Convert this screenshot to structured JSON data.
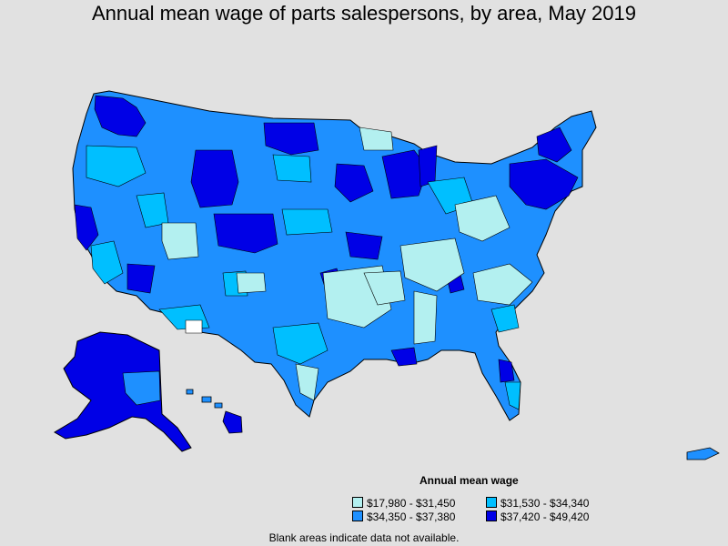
{
  "title": "Annual mean wage of parts salespersons, by area, May 2019",
  "legend": {
    "title": "Annual mean wage",
    "items": [
      {
        "label": "$17,980 - $31,450",
        "color": "#b3f0f0"
      },
      {
        "label": "$31,530 - $34,340",
        "color": "#00bfff"
      },
      {
        "label": "$34,350 - $37,380",
        "color": "#1e90ff"
      },
      {
        "label": "$37,420 - $49,420",
        "color": "#0000e6"
      }
    ]
  },
  "footnote": "Blank areas indicate data not available.",
  "colors": {
    "background": "#e1e1e1",
    "no_data": "#ffffff",
    "border": "#000000"
  }
}
